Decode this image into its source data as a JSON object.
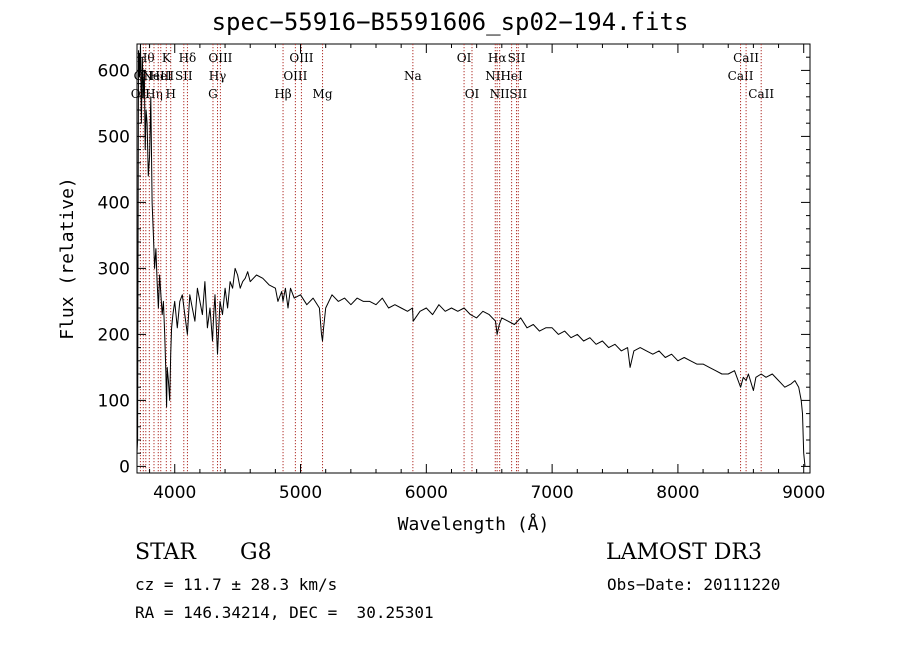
{
  "chart_data": {
    "type": "line",
    "title": "spec−55916−B5591606_sp02−194.fits",
    "xlabel": "Wavelength (Å)",
    "ylabel": "Flux (relative)",
    "xlim": [
      3700,
      9050
    ],
    "ylim": [
      -10,
      640
    ],
    "xticks": [
      4000,
      5000,
      6000,
      7000,
      8000,
      9000
    ],
    "yticks": [
      0,
      100,
      200,
      300,
      400,
      500,
      600
    ],
    "grid": false,
    "legend": "none",
    "line_color": "#000000",
    "marker_color": "#b0302a",
    "spectrum": {
      "x": [
        3700,
        3705,
        3712,
        3720,
        3728,
        3735,
        3742,
        3750,
        3758,
        3765,
        3772,
        3780,
        3790,
        3800,
        3810,
        3820,
        3830,
        3840,
        3850,
        3860,
        3870,
        3880,
        3890,
        3900,
        3910,
        3920,
        3930,
        3935,
        3940,
        3950,
        3960,
        3968,
        3975,
        3985,
        4000,
        4020,
        4040,
        4060,
        4080,
        4101,
        4120,
        4140,
        4160,
        4180,
        4200,
        4220,
        4240,
        4260,
        4280,
        4300,
        4310,
        4320,
        4340,
        4360,
        4380,
        4400,
        4420,
        4440,
        4460,
        4480,
        4500,
        4520,
        4540,
        4560,
        4580,
        4600,
        4650,
        4700,
        4750,
        4800,
        4820,
        4850,
        4861,
        4880,
        4900,
        4920,
        4950,
        5000,
        5050,
        5100,
        5150,
        5167,
        5175,
        5183,
        5200,
        5250,
        5300,
        5350,
        5400,
        5450,
        5500,
        5550,
        5600,
        5650,
        5700,
        5750,
        5800,
        5850,
        5890,
        5896,
        5950,
        6000,
        6050,
        6100,
        6150,
        6200,
        6250,
        6300,
        6350,
        6400,
        6450,
        6500,
        6550,
        6563,
        6580,
        6600,
        6650,
        6700,
        6750,
        6800,
        6850,
        6900,
        6950,
        7000,
        7050,
        7100,
        7150,
        7200,
        7250,
        7300,
        7350,
        7400,
        7450,
        7500,
        7550,
        7600,
        7620,
        7650,
        7700,
        7750,
        7800,
        7850,
        7900,
        7950,
        8000,
        8050,
        8100,
        8150,
        8200,
        8250,
        8300,
        8350,
        8400,
        8450,
        8498,
        8520,
        8542,
        8560,
        8600,
        8620,
        8662,
        8700,
        8750,
        8800,
        8850,
        8900,
        8930,
        8960,
        8980,
        8990,
        9000,
        9010
      ],
      "y": [
        20,
        40,
        630,
        590,
        640,
        520,
        620,
        560,
        600,
        480,
        540,
        520,
        440,
        470,
        560,
        400,
        350,
        300,
        330,
        280,
        240,
        290,
        260,
        230,
        250,
        200,
        140,
        90,
        150,
        130,
        100,
        170,
        210,
        230,
        250,
        210,
        250,
        260,
        230,
        200,
        260,
        240,
        220,
        270,
        250,
        230,
        280,
        210,
        240,
        190,
        230,
        260,
        170,
        250,
        230,
        270,
        240,
        280,
        270,
        300,
        290,
        270,
        280,
        285,
        295,
        280,
        290,
        285,
        275,
        270,
        250,
        265,
        250,
        270,
        240,
        270,
        255,
        260,
        245,
        255,
        240,
        200,
        190,
        210,
        240,
        260,
        250,
        255,
        245,
        255,
        250,
        250,
        245,
        255,
        240,
        245,
        240,
        235,
        240,
        220,
        235,
        240,
        230,
        245,
        235,
        240,
        235,
        240,
        230,
        225,
        235,
        230,
        220,
        200,
        215,
        225,
        220,
        215,
        225,
        210,
        215,
        205,
        210,
        210,
        200,
        205,
        195,
        200,
        190,
        195,
        185,
        190,
        180,
        185,
        175,
        180,
        150,
        175,
        180,
        175,
        170,
        175,
        165,
        170,
        160,
        165,
        160,
        155,
        155,
        150,
        145,
        140,
        140,
        145,
        120,
        135,
        130,
        140,
        115,
        135,
        140,
        135,
        140,
        130,
        120,
        125,
        130,
        120,
        100,
        80,
        20,
        0
      ]
    },
    "lines": [
      {
        "x": 3727,
        "label": "OII",
        "row": 2
      },
      {
        "x": 3750,
        "label": "OII",
        "row": 1
      },
      {
        "x": 3770,
        "label": "Hθ",
        "row": 0
      },
      {
        "x": 3798,
        "label": "",
        "row": 0
      },
      {
        "x": 3835,
        "label": "Hη",
        "row": 2
      },
      {
        "x": 3869,
        "label": "NeIII",
        "row": 1
      },
      {
        "x": 3889,
        "label": "HeI",
        "row": 1
      },
      {
        "x": 3933,
        "label": "K",
        "row": 0
      },
      {
        "x": 3968,
        "label": "H",
        "row": 2
      },
      {
        "x": 4072,
        "label": "SII",
        "row": 1
      },
      {
        "x": 4101,
        "label": "Hδ",
        "row": 0
      },
      {
        "x": 4304,
        "label": "G",
        "row": 2
      },
      {
        "x": 4340,
        "label": "Hγ",
        "row": 1
      },
      {
        "x": 4363,
        "label": "OIII",
        "row": 0
      },
      {
        "x": 4861,
        "label": "Hβ",
        "row": 2
      },
      {
        "x": 4959,
        "label": "OIII",
        "row": 1
      },
      {
        "x": 5007,
        "label": "OIII",
        "row": 0
      },
      {
        "x": 5175,
        "label": "Mg",
        "row": 2
      },
      {
        "x": 5893,
        "label": "Na",
        "row": 1
      },
      {
        "x": 6300,
        "label": "OI",
        "row": 0
      },
      {
        "x": 6363,
        "label": "OI",
        "row": 2
      },
      {
        "x": 6548,
        "label": "NII",
        "row": 1
      },
      {
        "x": 6563,
        "label": "Hα",
        "row": 0
      },
      {
        "x": 6583,
        "label": "NII",
        "row": 2
      },
      {
        "x": 6678,
        "label": "HeI",
        "row": 1
      },
      {
        "x": 6717,
        "label": "SII",
        "row": 0
      },
      {
        "x": 6731,
        "label": "SII",
        "row": 2
      },
      {
        "x": 8498,
        "label": "CaII",
        "row": 1
      },
      {
        "x": 8542,
        "label": "CaII",
        "row": 0
      },
      {
        "x": 8662,
        "label": "CaII",
        "row": 2
      }
    ]
  },
  "info": {
    "class": "STAR",
    "subclass": "G8",
    "survey": "LAMOST DR3",
    "cz": "cz = 11.7 ± 28.3 km/s",
    "obs_date": "Obs−Date: 20111220",
    "radec": "RA = 146.34214, DEC =  30.25301"
  }
}
